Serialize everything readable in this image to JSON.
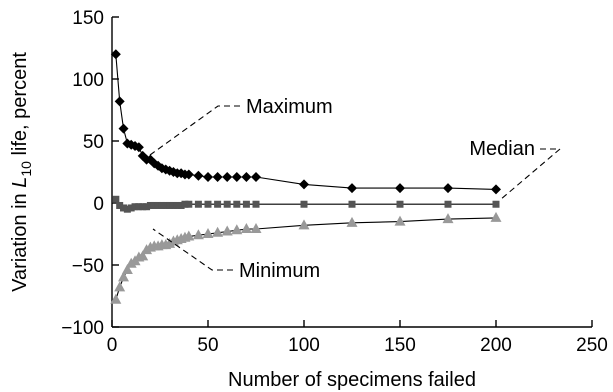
{
  "chart_data": {
    "type": "scatter",
    "xlabel": "Number of specimens failed",
    "ylabel": {
      "pre": "Variation in ",
      "var": "L",
      "sub": "10",
      "post": " life, percent"
    },
    "xlim": [
      0,
      250
    ],
    "ylim": [
      -100,
      150
    ],
    "xticks": [
      "0",
      "50",
      "100",
      "150",
      "200",
      "250"
    ],
    "yticks": [
      "150",
      "100",
      "50",
      "0",
      "−50",
      "−100"
    ],
    "grid": false,
    "legend": "none",
    "series": [
      {
        "name": "Maximum",
        "marker": "diamond",
        "color": "#000000",
        "x": [
          2,
          4,
          6,
          8,
          10,
          12,
          14,
          16,
          18,
          20,
          22,
          24,
          26,
          28,
          30,
          32,
          34,
          36,
          38,
          40,
          45,
          50,
          55,
          60,
          65,
          70,
          75,
          100,
          125,
          150,
          175,
          200
        ],
        "y": [
          120,
          82,
          60,
          48,
          47,
          46,
          45,
          38,
          35,
          35,
          32,
          30,
          28,
          27,
          26,
          25,
          24,
          24,
          23,
          23,
          22,
          21,
          21,
          21,
          21,
          21,
          21,
          15,
          12,
          12,
          12,
          11
        ]
      },
      {
        "name": "Median",
        "marker": "square",
        "color": "#555555",
        "x": [
          2,
          4,
          6,
          8,
          10,
          12,
          14,
          16,
          18,
          20,
          22,
          24,
          26,
          28,
          30,
          32,
          34,
          36,
          38,
          40,
          45,
          50,
          55,
          60,
          65,
          70,
          75,
          100,
          125,
          150,
          175,
          200
        ],
        "y": [
          3,
          -2,
          -4,
          -5,
          -4,
          -3,
          -3,
          -3,
          -3,
          -2,
          -2,
          -2,
          -2,
          -2,
          -2,
          -2,
          -2,
          -2,
          -1,
          -1,
          -1,
          -1,
          -1,
          -1,
          -1,
          -1,
          -1,
          -1,
          -1,
          -1,
          -1,
          -1
        ]
      },
      {
        "name": "Minimum",
        "marker": "triangle",
        "color": "#999999",
        "x": [
          2,
          4,
          6,
          8,
          10,
          12,
          14,
          16,
          18,
          20,
          22,
          24,
          26,
          28,
          30,
          32,
          34,
          36,
          38,
          40,
          45,
          50,
          55,
          60,
          65,
          70,
          75,
          100,
          125,
          150,
          175,
          200
        ],
        "y": [
          -78,
          -68,
          -60,
          -54,
          -49,
          -47,
          -44,
          -43,
          -38,
          -36,
          -35,
          -35,
          -34,
          -34,
          -33,
          -31,
          -30,
          -29,
          -28,
          -27,
          -26,
          -25,
          -24,
          -23,
          -22,
          -21,
          -21,
          -18,
          -16,
          -15,
          -13,
          -12
        ]
      }
    ],
    "annotations": [
      {
        "text": "Maximum",
        "series": "Maximum"
      },
      {
        "text": "Median",
        "series": "Median"
      },
      {
        "text": "Minimum",
        "series": "Minimum"
      }
    ]
  }
}
